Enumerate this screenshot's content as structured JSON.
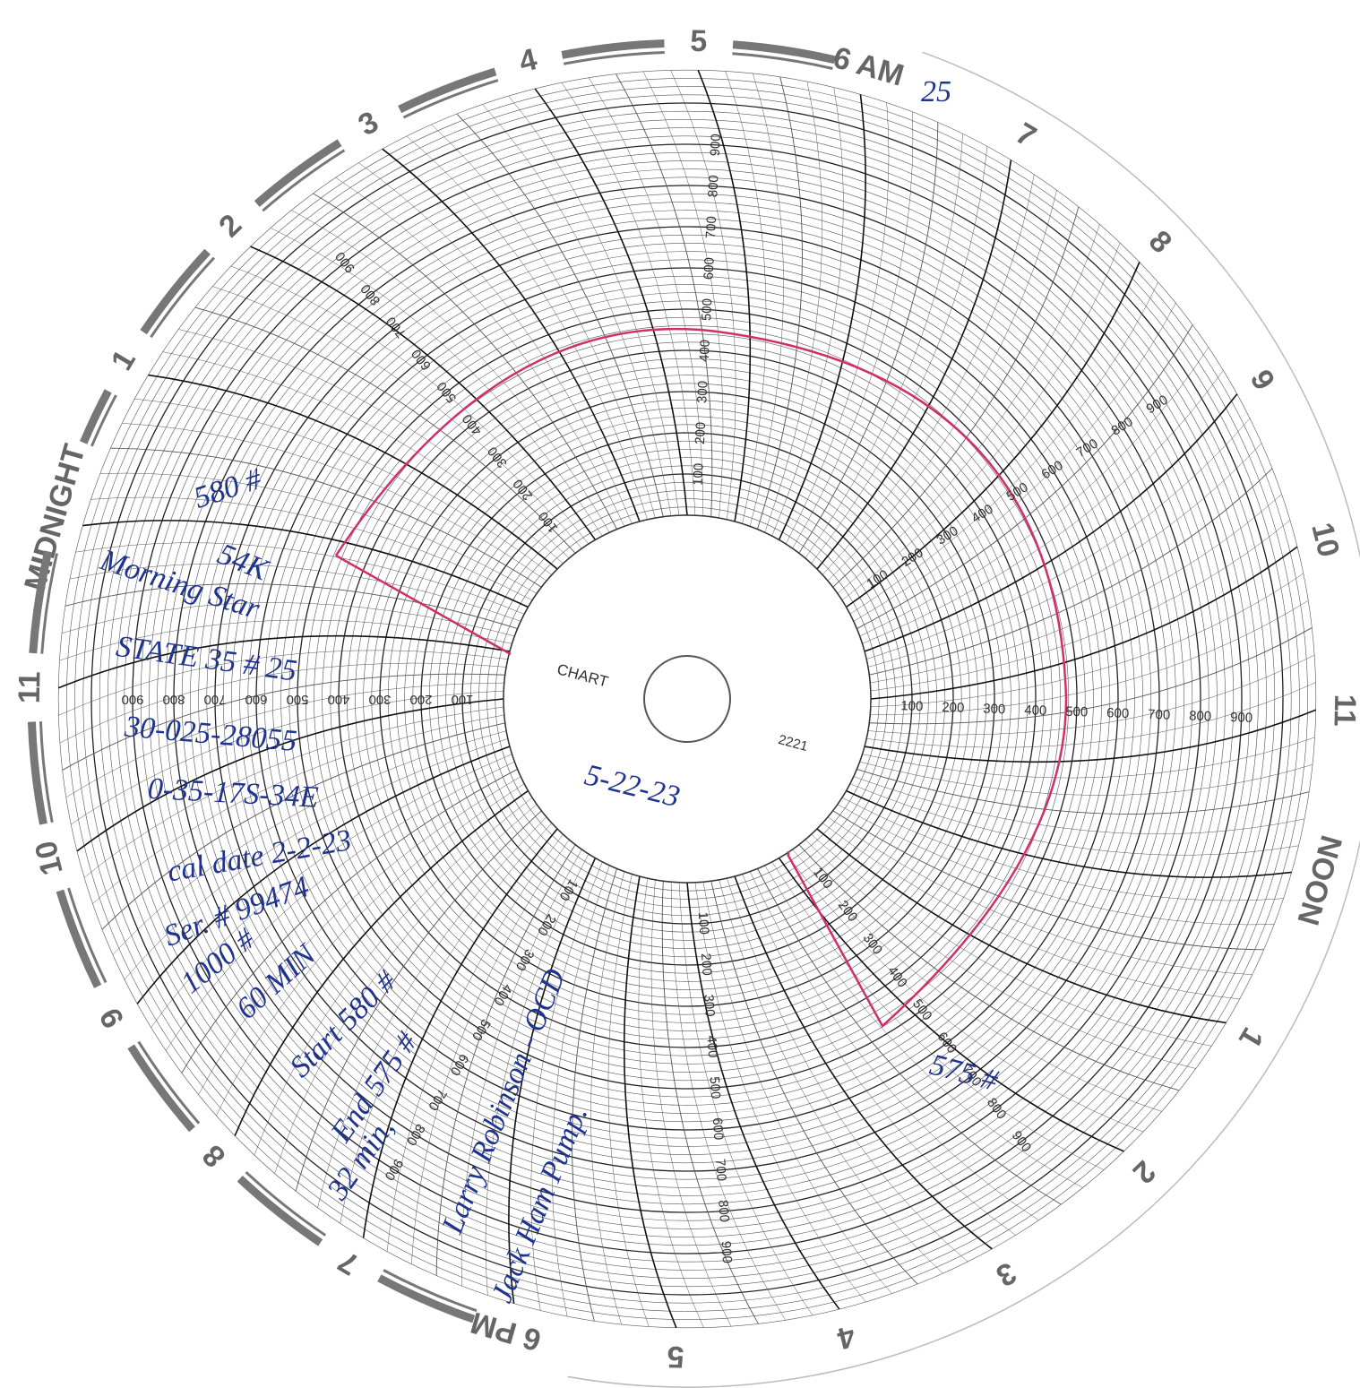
{
  "hour_labels": [
    "MIDNIGHT",
    "1",
    "2",
    "3",
    "4",
    "5",
    "6 AM",
    "7",
    "8",
    "9",
    "10",
    "11",
    "NOON",
    "1",
    "2",
    "3",
    "4",
    "5",
    "6 PM",
    "7",
    "8",
    "9",
    "10",
    "11"
  ],
  "scale_labels": [
    100,
    200,
    300,
    400,
    500,
    600,
    700,
    800,
    900
  ],
  "printed": {
    "chart": "CHART",
    "number": "2221"
  },
  "notes": [
    "580 #",
    "54K",
    "Morning Star",
    "STATE 35 # 25",
    "30-025-28055",
    "0-35-17S-34E",
    "cal date 2-2-23",
    "Ser. # 99474",
    "1000 #",
    "60 MIN",
    "Start 580 #",
    "End 575 #",
    "32 min,",
    "Larry Robinson - OCD",
    "Jack Ham Pump.",
    "5-22-23",
    "575 #",
    "25"
  ]
}
